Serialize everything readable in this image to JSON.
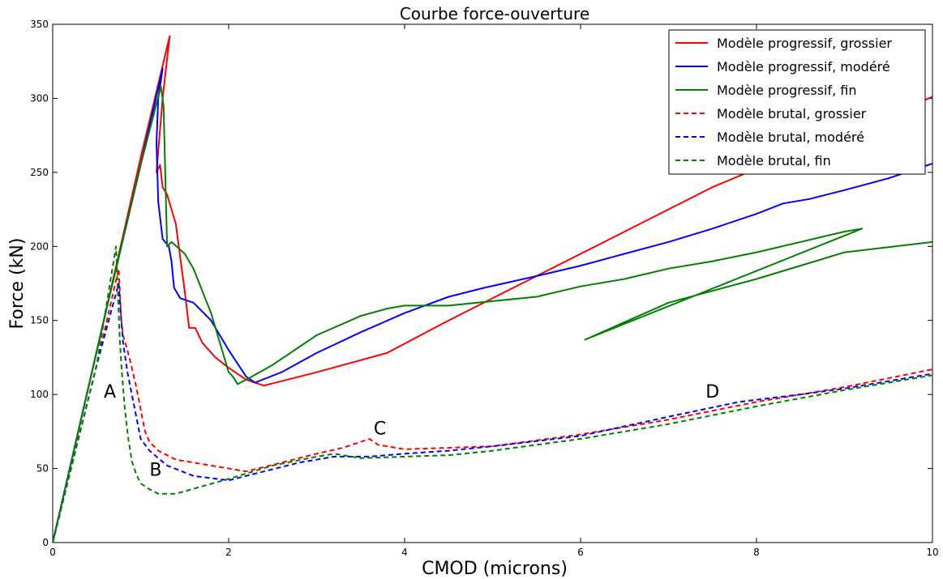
{
  "chart_data": {
    "type": "line",
    "title": "Courbe force-ouverture",
    "xlabel": "CMOD (microns)",
    "ylabel": "Force (kN)",
    "xlim": [
      0,
      10
    ],
    "ylim": [
      0,
      350
    ],
    "xticks": [
      0,
      2,
      4,
      6,
      8,
      10
    ],
    "yticks": [
      0,
      50,
      100,
      150,
      200,
      250,
      300,
      350
    ],
    "grid": false,
    "legend_position": "top-right",
    "annotations": [
      {
        "text": "A",
        "x": 0.65,
        "y": 98
      },
      {
        "text": "B",
        "x": 1.17,
        "y": 45
      },
      {
        "text": "C",
        "x": 3.72,
        "y": 73
      },
      {
        "text": "D",
        "x": 7.5,
        "y": 98
      }
    ],
    "series": [
      {
        "name": "Modèle progressif, grossier",
        "color": "#ff0000",
        "linestyle": "solid",
        "points": [
          [
            0,
            0
          ],
          [
            0.6,
            155
          ],
          [
            1.0,
            260
          ],
          [
            1.33,
            342
          ],
          [
            1.25,
            300
          ],
          [
            1.18,
            250
          ],
          [
            1.22,
            255
          ],
          [
            1.25,
            240
          ],
          [
            1.3,
            235
          ],
          [
            1.4,
            215
          ],
          [
            1.5,
            170
          ],
          [
            1.55,
            145
          ],
          [
            1.62,
            145
          ],
          [
            1.7,
            135
          ],
          [
            1.85,
            125
          ],
          [
            2.0,
            118
          ],
          [
            2.2,
            110
          ],
          [
            2.4,
            106
          ],
          [
            3.0,
            115
          ],
          [
            3.8,
            128
          ],
          [
            4.5,
            150
          ],
          [
            5.5,
            180
          ],
          [
            6.5,
            210
          ],
          [
            7.5,
            240
          ],
          [
            8.5,
            265
          ],
          [
            9.2,
            282
          ],
          [
            10.0,
            301
          ]
        ]
      },
      {
        "name": "Modèle progressif, modéré",
        "color": "#0000ff",
        "linestyle": "solid",
        "points": [
          [
            0,
            0
          ],
          [
            0.6,
            155
          ],
          [
            1.0,
            255
          ],
          [
            1.25,
            320
          ],
          [
            1.2,
            300
          ],
          [
            1.18,
            270
          ],
          [
            1.2,
            230
          ],
          [
            1.25,
            205
          ],
          [
            1.32,
            200
          ],
          [
            1.35,
            190
          ],
          [
            1.38,
            172
          ],
          [
            1.45,
            165
          ],
          [
            1.6,
            162
          ],
          [
            1.8,
            150
          ],
          [
            2.0,
            130
          ],
          [
            2.2,
            112
          ],
          [
            2.3,
            108
          ],
          [
            2.6,
            115
          ],
          [
            3.0,
            128
          ],
          [
            3.5,
            142
          ],
          [
            4.0,
            155
          ],
          [
            4.5,
            166
          ],
          [
            4.9,
            172
          ],
          [
            5.5,
            180
          ],
          [
            6.0,
            187
          ],
          [
            6.5,
            195
          ],
          [
            7.0,
            203
          ],
          [
            7.5,
            212
          ],
          [
            8.0,
            222
          ],
          [
            8.3,
            229
          ],
          [
            8.6,
            232
          ],
          [
            9.0,
            238
          ],
          [
            9.5,
            246
          ],
          [
            10.0,
            256
          ]
        ]
      },
      {
        "name": "Modèle progressif, fin",
        "color": "#008000",
        "linestyle": "solid",
        "points": [
          [
            0,
            0
          ],
          [
            0.6,
            155
          ],
          [
            1.0,
            255
          ],
          [
            1.23,
            308
          ],
          [
            1.26,
            295
          ],
          [
            1.3,
            200
          ],
          [
            1.35,
            203
          ],
          [
            1.5,
            195
          ],
          [
            1.6,
            185
          ],
          [
            1.8,
            155
          ],
          [
            2.0,
            115
          ],
          [
            2.05,
            112
          ],
          [
            2.1,
            107
          ],
          [
            2.2,
            110
          ],
          [
            2.5,
            120
          ],
          [
            3.0,
            140
          ],
          [
            3.5,
            153
          ],
          [
            3.8,
            158
          ],
          [
            4.0,
            160
          ],
          [
            4.5,
            160
          ],
          [
            5.0,
            163
          ],
          [
            5.5,
            166
          ],
          [
            6.0,
            173
          ],
          [
            6.5,
            178
          ],
          [
            7.0,
            185
          ],
          [
            7.5,
            190
          ],
          [
            8.0,
            196
          ],
          [
            8.5,
            203
          ],
          [
            9.0,
            210
          ],
          [
            9.2,
            212
          ],
          [
            6.05,
            137
          ],
          [
            7.0,
            162
          ],
          [
            8.0,
            178
          ],
          [
            9.0,
            196
          ],
          [
            10.0,
            203
          ]
        ]
      },
      {
        "name": "Modèle brutal, grossier",
        "color": "#ff0000",
        "linestyle": "dashed",
        "points": [
          [
            0,
            0
          ],
          [
            0.5,
            120
          ],
          [
            0.75,
            185
          ],
          [
            0.78,
            150
          ],
          [
            0.8,
            140
          ],
          [
            0.85,
            130
          ],
          [
            0.9,
            118
          ],
          [
            0.95,
            105
          ],
          [
            1.0,
            90
          ],
          [
            1.05,
            75
          ],
          [
            1.1,
            68
          ],
          [
            1.2,
            62
          ],
          [
            1.4,
            56
          ],
          [
            1.8,
            52
          ],
          [
            2.2,
            48
          ],
          [
            2.6,
            54
          ],
          [
            3.0,
            60
          ],
          [
            3.3,
            64
          ],
          [
            3.5,
            68
          ],
          [
            3.6,
            70
          ],
          [
            3.7,
            66
          ],
          [
            4.0,
            63
          ],
          [
            5.0,
            65
          ],
          [
            6.0,
            73
          ],
          [
            7.0,
            83
          ],
          [
            8.0,
            95
          ],
          [
            9.0,
            105
          ],
          [
            10.0,
            117
          ]
        ]
      },
      {
        "name": "Modèle brutal, modéré",
        "color": "#0000ff",
        "linestyle": "dashed",
        "points": [
          [
            0,
            0
          ],
          [
            0.5,
            120
          ],
          [
            0.75,
            175
          ],
          [
            0.78,
            150
          ],
          [
            0.8,
            135
          ],
          [
            0.85,
            115
          ],
          [
            0.9,
            100
          ],
          [
            0.95,
            85
          ],
          [
            1.0,
            70
          ],
          [
            1.1,
            62
          ],
          [
            1.3,
            52
          ],
          [
            1.6,
            45
          ],
          [
            2.0,
            42
          ],
          [
            2.4,
            48
          ],
          [
            2.8,
            54
          ],
          [
            3.2,
            58
          ],
          [
            3.6,
            58
          ],
          [
            4.0,
            60
          ],
          [
            4.5,
            62
          ],
          [
            5.0,
            65
          ],
          [
            6.0,
            72
          ],
          [
            7.0,
            85
          ],
          [
            7.8,
            95
          ],
          [
            8.5,
            100
          ],
          [
            9.0,
            104
          ],
          [
            9.5,
            109
          ],
          [
            10.0,
            114
          ]
        ]
      },
      {
        "name": "Modèle brutal, fin",
        "color": "#008000",
        "linestyle": "dashed",
        "points": [
          [
            0,
            0
          ],
          [
            0.5,
            120
          ],
          [
            0.72,
            200
          ],
          [
            0.74,
            170
          ],
          [
            0.76,
            140
          ],
          [
            0.78,
            120
          ],
          [
            0.82,
            90
          ],
          [
            0.86,
            70
          ],
          [
            0.9,
            55
          ],
          [
            0.95,
            46
          ],
          [
            1.0,
            40
          ],
          [
            1.1,
            36
          ],
          [
            1.2,
            33
          ],
          [
            1.4,
            33
          ],
          [
            1.7,
            38
          ],
          [
            2.0,
            43
          ],
          [
            2.5,
            52
          ],
          [
            3.0,
            58
          ],
          [
            3.2,
            60
          ],
          [
            3.5,
            57
          ],
          [
            4.0,
            58
          ],
          [
            4.5,
            59
          ],
          [
            5.0,
            62
          ],
          [
            6.0,
            70
          ],
          [
            7.0,
            80
          ],
          [
            8.0,
            92
          ],
          [
            9.0,
            103
          ],
          [
            10.0,
            113
          ]
        ]
      }
    ]
  }
}
